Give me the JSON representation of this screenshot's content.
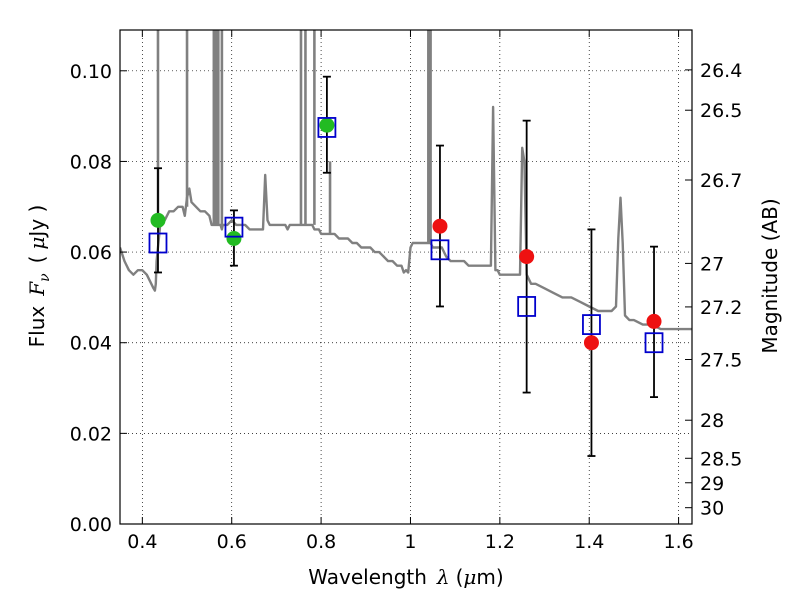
{
  "chart_data": {
    "type": "scatter",
    "xlabel": "Wavelength",
    "xlabel_symbol": "λ",
    "xlabel_unit_open": "(",
    "xlabel_unit_mu": "μ",
    "xlabel_unit_rest": "m)",
    "ylabel": "Flux",
    "ylabel_symbol": "F",
    "ylabel_subscript": "ν",
    "ylabel_unit_open": "(",
    "ylabel_unit_mu": "μ",
    "ylabel_unit_rest": "Jy )",
    "y2label": "Magnitude (AB)",
    "xlim": [
      0.35,
      1.63
    ],
    "ylim": [
      0.0,
      0.109
    ],
    "grid": true,
    "xticks": [
      0.4,
      0.6,
      0.8,
      1.0,
      1.2,
      1.4,
      1.6
    ],
    "xtick_labels": [
      "0.4",
      "0.6",
      "0.8",
      "1",
      "1.2",
      "1.4",
      "1.6"
    ],
    "yticks": [
      0.0,
      0.02,
      0.04,
      0.06,
      0.08,
      0.1
    ],
    "ytick_labels": [
      "0.00",
      "0.02",
      "0.04",
      "0.06",
      "0.08",
      "0.10"
    ],
    "y2ticks": [
      {
        "label": "26.4",
        "flux": 0.1002
      },
      {
        "label": "26.5",
        "flux": 0.0913
      },
      {
        "label": "26.7",
        "flux": 0.0759
      },
      {
        "label": "27",
        "flux": 0.0575
      },
      {
        "label": "27.2",
        "flux": 0.0479
      },
      {
        "label": "27.5",
        "flux": 0.0363
      },
      {
        "label": "28",
        "flux": 0.0229
      },
      {
        "label": "28.5",
        "flux": 0.0145
      },
      {
        "label": "29",
        "flux": 0.0091
      },
      {
        "label": "30",
        "flux": 0.0036
      }
    ],
    "series": [
      {
        "kind": "line",
        "color": "#808080",
        "x": [
          0.35,
          0.36,
          0.37,
          0.38,
          0.39,
          0.4,
          0.41,
          0.42,
          0.425,
          0.428,
          0.43,
          0.432,
          0.44,
          0.45,
          0.46,
          0.47,
          0.48,
          0.49,
          0.495,
          0.5,
          0.505,
          0.51,
          0.52,
          0.53,
          0.54,
          0.55,
          0.555,
          0.56,
          0.565,
          0.57,
          0.575,
          0.578,
          0.58,
          0.582,
          0.585,
          0.59,
          0.6,
          0.61,
          0.62,
          0.63,
          0.64,
          0.65,
          0.66,
          0.67,
          0.675,
          0.68,
          0.685,
          0.69,
          0.7,
          0.71,
          0.72,
          0.725,
          0.73,
          0.735,
          0.74,
          0.75,
          0.752,
          0.755,
          0.76,
          0.762,
          0.765,
          0.77,
          0.775,
          0.78,
          0.785,
          0.79,
          0.795,
          0.8,
          0.81,
          0.82,
          0.825,
          0.83,
          0.84,
          0.85,
          0.86,
          0.87,
          0.88,
          0.89,
          0.9,
          0.91,
          0.92,
          0.93,
          0.94,
          0.95,
          0.96,
          0.97,
          0.98,
          0.985,
          0.99,
          0.995,
          1.0,
          1.005,
          1.01,
          1.02,
          1.03,
          1.035,
          1.04,
          1.045,
          1.05,
          1.06,
          1.07,
          1.08,
          1.09,
          1.1,
          1.11,
          1.12,
          1.13,
          1.14,
          1.15,
          1.16,
          1.17,
          1.18,
          1.185,
          1.19,
          1.195,
          1.2,
          1.21,
          1.22,
          1.23,
          1.24,
          1.245,
          1.25,
          1.255,
          1.26,
          1.27,
          1.28,
          1.3,
          1.32,
          1.34,
          1.36,
          1.38,
          1.4,
          1.42,
          1.44,
          1.45,
          1.46,
          1.465,
          1.47,
          1.475,
          1.48,
          1.49,
          1.5,
          1.52,
          1.54,
          1.56,
          1.58,
          1.6,
          1.62,
          1.63
        ],
        "y": [
          0.061,
          0.058,
          0.056,
          0.055,
          0.056,
          0.056,
          0.055,
          0.053,
          0.052,
          0.0515,
          0.053,
          0.058,
          0.066,
          0.067,
          0.069,
          0.069,
          0.07,
          0.07,
          0.068,
          0.072,
          0.074,
          0.071,
          0.07,
          0.069,
          0.069,
          0.068,
          0.066,
          0.066,
          0.066,
          0.066,
          0.066,
          0.065,
          0.066,
          0.066,
          0.066,
          0.066,
          0.067,
          0.066,
          0.066,
          0.066,
          0.065,
          0.065,
          0.065,
          0.065,
          0.077,
          0.067,
          0.066,
          0.066,
          0.066,
          0.066,
          0.066,
          0.065,
          0.066,
          0.066,
          0.066,
          0.066,
          0.066,
          0.066,
          0.066,
          0.066,
          0.066,
          0.066,
          0.066,
          0.066,
          0.065,
          0.065,
          0.065,
          0.064,
          0.064,
          0.064,
          0.064,
          0.064,
          0.063,
          0.063,
          0.063,
          0.062,
          0.062,
          0.061,
          0.061,
          0.061,
          0.06,
          0.06,
          0.059,
          0.058,
          0.058,
          0.057,
          0.057,
          0.0555,
          0.056,
          0.0555,
          0.061,
          0.062,
          0.062,
          0.062,
          0.062,
          0.062,
          0.062,
          0.062,
          0.061,
          0.061,
          0.061,
          0.059,
          0.058,
          0.058,
          0.058,
          0.058,
          0.057,
          0.057,
          0.057,
          0.057,
          0.057,
          0.057,
          0.092,
          0.056,
          0.056,
          0.055,
          0.055,
          0.055,
          0.055,
          0.055,
          0.055,
          0.083,
          0.08,
          0.055,
          0.053,
          0.053,
          0.052,
          0.051,
          0.05,
          0.05,
          0.049,
          0.048,
          0.047,
          0.047,
          0.047,
          0.048,
          0.063,
          0.072,
          0.062,
          0.046,
          0.045,
          0.045,
          0.044,
          0.044,
          0.043,
          0.043,
          0.043,
          0.043,
          0.043
        ],
        "lines": [
          {
            "x": 0.435,
            "y0": 0.066,
            "y1": 0.109
          },
          {
            "x": 0.5,
            "y0": 0.07,
            "y1": 0.109
          },
          {
            "x": 0.56,
            "y0": 0.066,
            "y1": 0.109
          },
          {
            "x": 0.565,
            "y0": 0.066,
            "y1": 0.109
          },
          {
            "x": 0.57,
            "y0": 0.066,
            "y1": 0.109
          },
          {
            "x": 0.578,
            "y0": 0.066,
            "y1": 0.109
          },
          {
            "x": 0.755,
            "y0": 0.066,
            "y1": 0.109
          },
          {
            "x": 0.765,
            "y0": 0.066,
            "y1": 0.109
          },
          {
            "x": 0.785,
            "y0": 0.066,
            "y1": 0.109
          },
          {
            "x": 0.82,
            "y0": 0.064,
            "y1": 0.08
          },
          {
            "x": 1.04,
            "y0": 0.062,
            "y1": 0.109
          },
          {
            "x": 1.045,
            "y0": 0.062,
            "y1": 0.109
          }
        ]
      },
      {
        "kind": "errorbar",
        "color": "#000000",
        "points": [
          {
            "x": 0.435,
            "y": 0.067,
            "yerr_low": 0.0555,
            "yerr_high": 0.0785
          },
          {
            "x": 0.605,
            "y": 0.063,
            "yerr_low": 0.057,
            "yerr_high": 0.0692
          },
          {
            "x": 0.813,
            "y": 0.088,
            "yerr_low": 0.0775,
            "yerr_high": 0.0987
          },
          {
            "x": 1.066,
            "y": 0.0657,
            "yerr_low": 0.048,
            "yerr_high": 0.0835
          },
          {
            "x": 1.26,
            "y": 0.059,
            "yerr_low": 0.029,
            "yerr_high": 0.089
          },
          {
            "x": 1.405,
            "y": 0.04,
            "yerr_low": 0.015,
            "yerr_high": 0.065
          },
          {
            "x": 1.545,
            "y": 0.0447,
            "yerr_low": 0.028,
            "yerr_high": 0.0612
          }
        ]
      },
      {
        "kind": "scatter",
        "marker": "circle",
        "color": "#22bb22",
        "x": [
          0.435,
          0.605,
          0.813
        ],
        "y": [
          0.067,
          0.063,
          0.088
        ]
      },
      {
        "kind": "scatter",
        "marker": "circle",
        "color": "#ee1111",
        "x": [
          1.066,
          1.26,
          1.405,
          1.545
        ],
        "y": [
          0.0657,
          0.059,
          0.04,
          0.0447
        ]
      },
      {
        "kind": "scatter",
        "marker": "square-open",
        "color": "#0000cc",
        "x": [
          0.435,
          0.605,
          0.813,
          1.066,
          1.26,
          1.405,
          1.545
        ],
        "y": [
          0.062,
          0.0655,
          0.0875,
          0.0605,
          0.048,
          0.044,
          0.04
        ]
      }
    ]
  }
}
